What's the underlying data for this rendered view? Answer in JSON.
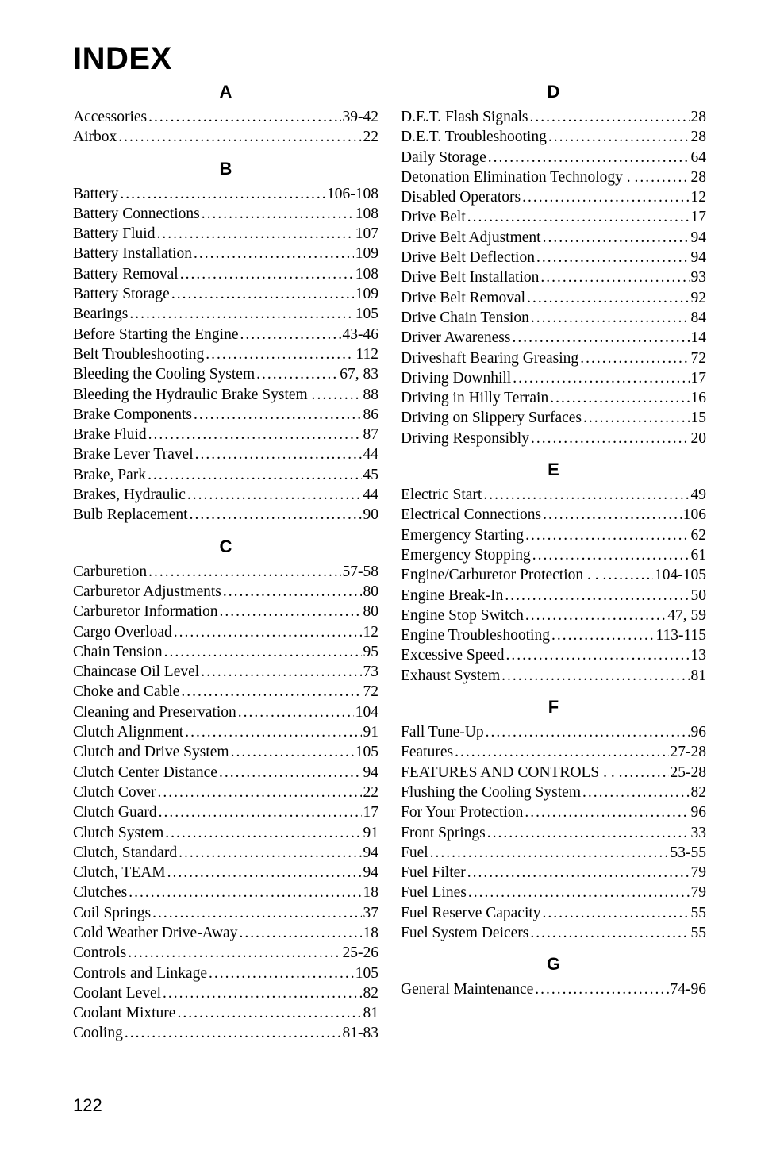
{
  "title": "INDEX",
  "pageNumber": "122",
  "style": {
    "bodyFont": "Times New Roman",
    "headFont": "Arial",
    "titleSize": 40,
    "headSize": 22,
    "entrySize": 19.5,
    "lineHeight": 25.3,
    "bg": "#ffffff",
    "fg": "#000000"
  },
  "leftSections": [
    {
      "letter": "A",
      "entries": [
        {
          "label": "Accessories",
          "page": "39-42"
        },
        {
          "label": "Airbox",
          "page": "22"
        }
      ]
    },
    {
      "letter": "B",
      "entries": [
        {
          "label": "Battery",
          "page": "106-108"
        },
        {
          "label": "Battery Connections",
          "page": "108"
        },
        {
          "label": "Battery Fluid",
          "page": "107"
        },
        {
          "label": "Battery Installation",
          "page": "109"
        },
        {
          "label": "Battery Removal",
          "page": "108"
        },
        {
          "label": "Battery Storage",
          "page": "109"
        },
        {
          "label": "Bearings",
          "page": "105"
        },
        {
          "label": "Before Starting the Engine",
          "page": "43-46"
        },
        {
          "label": "Belt Troubleshooting",
          "page": "112"
        },
        {
          "label": "Bleeding the Cooling System",
          "page": "67, 83"
        },
        {
          "label": "Bleeding the Hydraulic Brake System .",
          "page": "88"
        },
        {
          "label": "Brake Components",
          "page": "86"
        },
        {
          "label": "Brake Fluid",
          "page": "87"
        },
        {
          "label": "Brake Lever Travel",
          "page": "44"
        },
        {
          "label": "Brake, Park",
          "page": "45"
        },
        {
          "label": "Brakes, Hydraulic",
          "page": "44"
        },
        {
          "label": "Bulb Replacement",
          "page": "90"
        }
      ]
    },
    {
      "letter": "C",
      "entries": [
        {
          "label": "Carburetion",
          "page": "57-58"
        },
        {
          "label": "Carburetor Adjustments",
          "page": "80"
        },
        {
          "label": "Carburetor Information",
          "page": "80"
        },
        {
          "label": "Cargo Overload",
          "page": "12"
        },
        {
          "label": "Chain Tension",
          "page": "95"
        },
        {
          "label": "Chaincase Oil Level",
          "page": "73"
        },
        {
          "label": "Choke and Cable",
          "page": "72"
        },
        {
          "label": "Cleaning and Preservation",
          "page": "104"
        },
        {
          "label": "Clutch Alignment",
          "page": "91"
        },
        {
          "label": "Clutch and Drive System",
          "page": "105"
        },
        {
          "label": "Clutch Center Distance",
          "page": "94"
        },
        {
          "label": "Clutch Cover",
          "page": "22"
        },
        {
          "label": "Clutch Guard",
          "page": "17"
        },
        {
          "label": "Clutch System",
          "page": "91"
        },
        {
          "label": "Clutch, Standard",
          "page": "94"
        },
        {
          "label": "Clutch, TEAM",
          "page": "94"
        },
        {
          "label": "Clutches",
          "page": "18"
        },
        {
          "label": "Coil Springs",
          "page": "37"
        },
        {
          "label": "Cold Weather Drive-Away",
          "page": "18"
        },
        {
          "label": "Controls",
          "page": "25-26"
        },
        {
          "label": "Controls and Linkage",
          "page": "105"
        },
        {
          "label": "Coolant Level",
          "page": "82"
        },
        {
          "label": "Coolant Mixture",
          "page": "81"
        },
        {
          "label": "Cooling",
          "page": "81-83"
        }
      ]
    }
  ],
  "rightSections": [
    {
      "letter": "D",
      "entries": [
        {
          "label": "D.E.T. Flash Signals",
          "page": "28"
        },
        {
          "label": "D.E.T. Troubleshooting",
          "page": "28"
        },
        {
          "label": "Daily Storage",
          "page": "64"
        },
        {
          "label": "Detonation Elimination Technology  . .",
          "page": "28"
        },
        {
          "label": "Disabled Operators",
          "page": "12"
        },
        {
          "label": "Drive Belt",
          "page": "17"
        },
        {
          "label": "Drive Belt Adjustment",
          "page": "94"
        },
        {
          "label": "Drive Belt Deflection",
          "page": "94"
        },
        {
          "label": "Drive Belt Installation",
          "page": "93"
        },
        {
          "label": "Drive Belt Removal",
          "page": "92"
        },
        {
          "label": "Drive Chain Tension",
          "page": "84"
        },
        {
          "label": "Driver Awareness",
          "page": "14"
        },
        {
          "label": "Driveshaft Bearing Greasing",
          "page": "72"
        },
        {
          "label": "Driving Downhill",
          "page": "17"
        },
        {
          "label": "Driving in Hilly Terrain",
          "page": "16"
        },
        {
          "label": "Driving on Slippery Surfaces",
          "page": "15"
        },
        {
          "label": "Driving Responsibly",
          "page": "20"
        }
      ]
    },
    {
      "letter": "E",
      "entries": [
        {
          "label": "Electric Start",
          "page": "49"
        },
        {
          "label": "Electrical Connections",
          "page": "106"
        },
        {
          "label": "Emergency Starting",
          "page": "62"
        },
        {
          "label": "Emergency Stopping",
          "page": "61"
        },
        {
          "label": "Engine/Carburetor Protection . . .",
          "page": "104-105"
        },
        {
          "label": "Engine Break-In",
          "page": "50"
        },
        {
          "label": "Engine Stop Switch",
          "page": "47, 59"
        },
        {
          "label": "Engine Troubleshooting",
          "page": "113-115"
        },
        {
          "label": "Excessive Speed",
          "page": "13"
        },
        {
          "label": "Exhaust System",
          "page": "81"
        }
      ]
    },
    {
      "letter": "F",
      "entries": [
        {
          "label": "Fall Tune-Up",
          "page": "96"
        },
        {
          "label": "Features",
          "page": "27-28"
        },
        {
          "label": "FEATURES AND CONTROLS  . . .",
          "page": "25-28"
        },
        {
          "label": "Flushing the Cooling System",
          "page": "82"
        },
        {
          "label": "For Your Protection",
          "page": "96"
        },
        {
          "label": "Front Springs",
          "page": "33"
        },
        {
          "label": "Fuel",
          "page": "53-55"
        },
        {
          "label": "Fuel Filter",
          "page": "79"
        },
        {
          "label": "Fuel Lines",
          "page": "79"
        },
        {
          "label": "Fuel Reserve Capacity",
          "page": "55"
        },
        {
          "label": "Fuel System Deicers",
          "page": "55"
        }
      ]
    },
    {
      "letter": "G",
      "entries": [
        {
          "label": "General Maintenance",
          "page": "74-96"
        }
      ]
    }
  ]
}
